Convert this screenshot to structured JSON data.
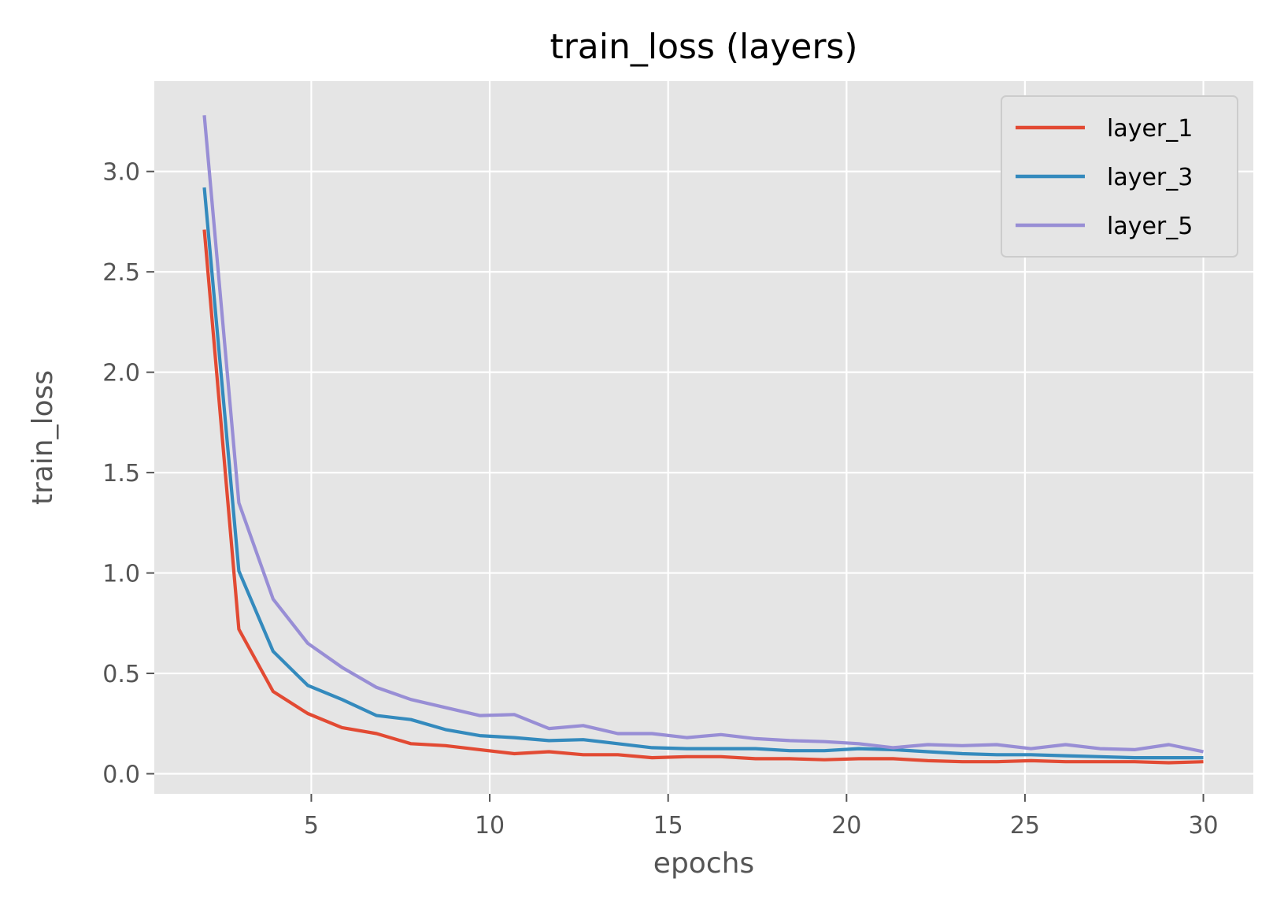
{
  "chart_data": {
    "type": "line",
    "title": "train_loss (layers)",
    "xlabel": "epochs",
    "ylabel": "train_loss",
    "xlim": [
      0.6,
      31.4
    ],
    "ylim": [
      -0.1,
      3.45
    ],
    "xticks": [
      5,
      10,
      15,
      20,
      25,
      30
    ],
    "yticks": [
      0.0,
      0.5,
      1.0,
      1.5,
      2.0,
      2.5,
      3.0
    ],
    "xtick_labels": [
      "5",
      "10",
      "15",
      "20",
      "25",
      "30"
    ],
    "ytick_labels": [
      "0.0",
      "0.5",
      "1.0",
      "1.5",
      "2.0",
      "2.5",
      "3.0"
    ],
    "grid": true,
    "legend_position": "top-right",
    "x": [
      2,
      2.97,
      3.93,
      4.9,
      5.86,
      6.83,
      7.79,
      8.76,
      9.72,
      10.69,
      11.66,
      12.62,
      13.59,
      14.55,
      15.52,
      16.48,
      17.45,
      18.41,
      19.38,
      20.34,
      21.31,
      22.28,
      23.24,
      24.21,
      25.17,
      26.14,
      27.1,
      28.07,
      29.03,
      30
    ],
    "series": [
      {
        "name": "layer_1",
        "color": "#E24A33",
        "values": [
          2.71,
          0.72,
          0.41,
          0.3,
          0.23,
          0.2,
          0.15,
          0.14,
          0.12,
          0.1,
          0.11,
          0.095,
          0.095,
          0.08,
          0.085,
          0.085,
          0.075,
          0.075,
          0.07,
          0.075,
          0.075,
          0.065,
          0.06,
          0.06,
          0.065,
          0.06,
          0.06,
          0.06,
          0.055,
          0.06
        ]
      },
      {
        "name": "layer_3",
        "color": "#348ABD",
        "values": [
          2.92,
          1.01,
          0.61,
          0.44,
          0.37,
          0.29,
          0.27,
          0.22,
          0.19,
          0.18,
          0.165,
          0.17,
          0.15,
          0.13,
          0.125,
          0.125,
          0.125,
          0.115,
          0.115,
          0.125,
          0.12,
          0.11,
          0.1,
          0.095,
          0.095,
          0.09,
          0.085,
          0.08,
          0.08,
          0.08
        ]
      },
      {
        "name": "layer_5",
        "color": "#988ED5",
        "values": [
          3.28,
          1.35,
          0.87,
          0.65,
          0.53,
          0.43,
          0.37,
          0.33,
          0.29,
          0.295,
          0.225,
          0.24,
          0.2,
          0.2,
          0.18,
          0.195,
          0.175,
          0.165,
          0.16,
          0.15,
          0.13,
          0.145,
          0.14,
          0.145,
          0.125,
          0.145,
          0.125,
          0.12,
          0.145,
          0.11
        ]
      }
    ],
    "colors": {
      "plot_background": "#E5E5E5",
      "grid": "#FFFFFF",
      "tick_text": "#555555"
    }
  }
}
